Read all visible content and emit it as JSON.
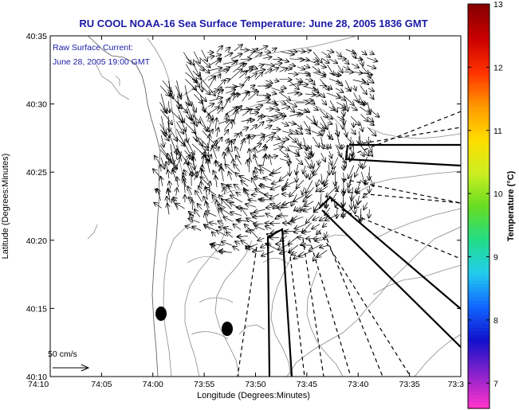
{
  "title": "RU COOL  NOAA-16  Sea Surface Temperature:  June 28, 2005 1836 GMT",
  "annotation": {
    "line1": "Raw Surface Current:",
    "line2": "June 28, 2005 19:00 GMT"
  },
  "scale_label": "50 cm/s",
  "x_axis": {
    "label": "Longitude (Degrees:Minutes)",
    "ticks": [
      "74:10",
      "74:05",
      "74:00",
      "73:55",
      "73:50",
      "73:45",
      "73:40",
      "73:35",
      "73:3"
    ]
  },
  "y_axis": {
    "label": "Latitude (Degrees:Minutes)",
    "ticks": [
      "40:35",
      "40:30",
      "40:25",
      "40:20",
      "40:15",
      "40:10"
    ]
  },
  "colorbar": {
    "label": "Temperature (°C)",
    "ticks": [
      "13",
      "12",
      "11",
      "10",
      "9",
      "8",
      "7"
    ],
    "range": [
      6.6,
      13
    ],
    "colors": [
      "#ff33cc",
      "#8822cc",
      "#1111cc",
      "#1166ff",
      "#22ccee",
      "#22dd88",
      "#66dd22",
      "#ccee22",
      "#ffdd00",
      "#ff9900",
      "#ff3300",
      "#cc0000",
      "#880000"
    ]
  },
  "colors": {
    "title": "#1a1aa6",
    "contour": "#888888"
  }
}
